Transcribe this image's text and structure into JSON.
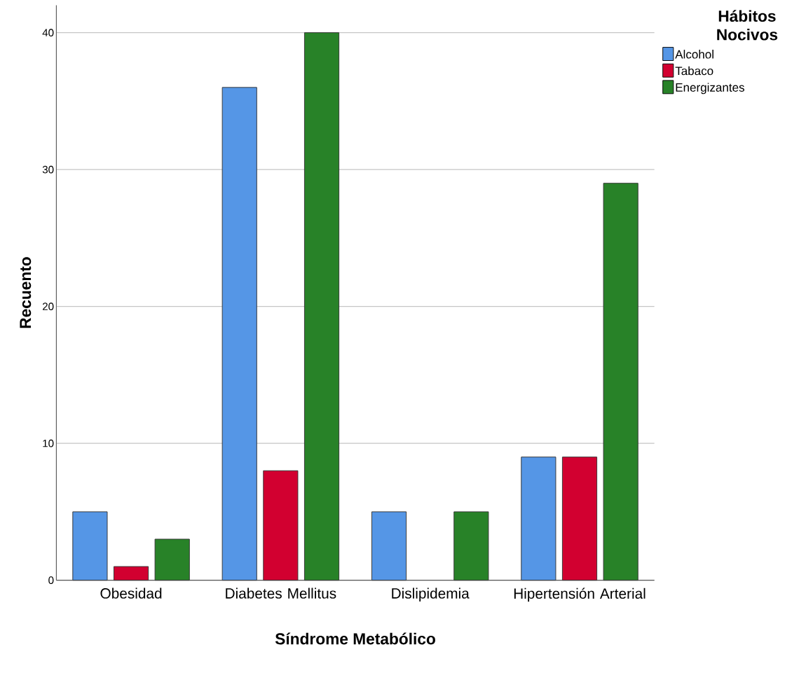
{
  "chart_data": {
    "type": "bar",
    "categories": [
      "Obesidad",
      "Diabetes Mellitus",
      "Dislipidemia",
      "Hipertensión Arterial"
    ],
    "series": [
      {
        "name": "Alcohol",
        "color": "#5596e6",
        "values": [
          5,
          36,
          5,
          9
        ]
      },
      {
        "name": "Tabaco",
        "color": "#d20030",
        "values": [
          1,
          8,
          null,
          9
        ]
      },
      {
        "name": "Energizantes",
        "color": "#288228",
        "values": [
          3,
          40,
          5,
          29
        ]
      }
    ],
    "xlabel": "Síndrome Metabólico",
    "ylabel": "Recuento",
    "legend_title": "Hábitos Nocivos",
    "ylim": [
      0,
      42
    ],
    "yticks": [
      0,
      10,
      20,
      30,
      40
    ],
    "grid": "y",
    "legend": "top right"
  }
}
